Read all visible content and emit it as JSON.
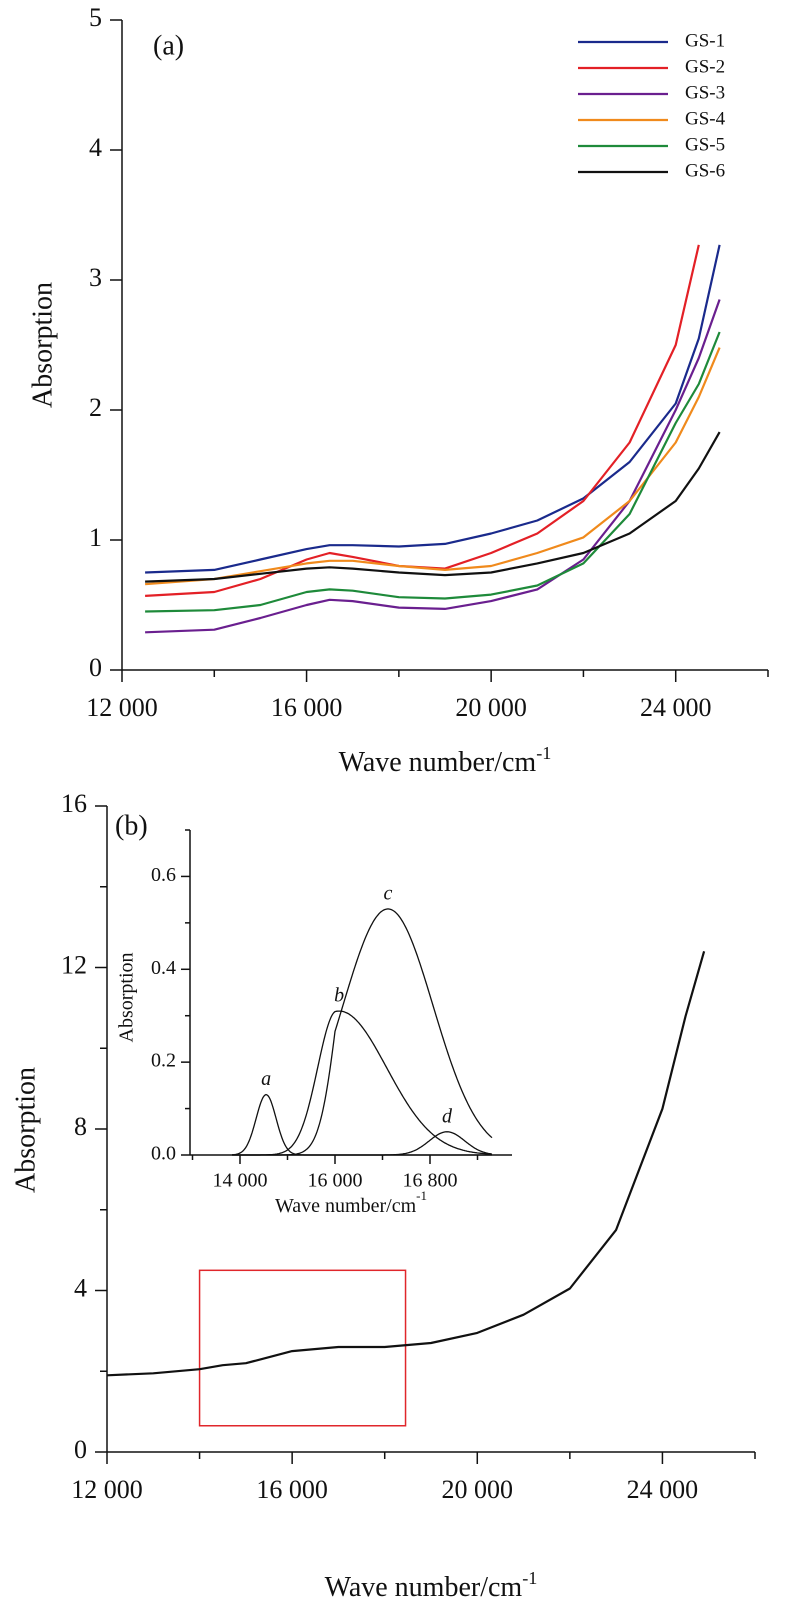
{
  "chart_data": [
    {
      "type": "line",
      "panel_label": "(a)",
      "ylabel": "Absorption",
      "xlabel": "Wave number/cm",
      "xlabel_superscript": "-1",
      "xlim": [
        12000,
        26000
      ],
      "ylim": [
        0,
        5
      ],
      "xticks": [
        {
          "value": 12000,
          "label": "12 000"
        },
        {
          "value": 16000,
          "label": "16 000"
        },
        {
          "value": 20000,
          "label": "20 000"
        },
        {
          "value": 24000,
          "label": "24 000"
        }
      ],
      "yticks": [
        0,
        1,
        2,
        3,
        4,
        5
      ],
      "legend": "upper right",
      "x": [
        12500,
        14000,
        15000,
        16000,
        16500,
        17000,
        18000,
        19000,
        20000,
        21000,
        22000,
        23000,
        24000,
        24500,
        24950
      ],
      "series": [
        {
          "name": "GS-1",
          "color": "#1a2a8c",
          "values": [
            0.75,
            0.77,
            0.85,
            0.93,
            0.96,
            0.96,
            0.95,
            0.97,
            1.05,
            1.15,
            1.32,
            1.6,
            2.05,
            2.55,
            3.27
          ]
        },
        {
          "name": "GS-2",
          "color": "#e32026",
          "values": [
            0.57,
            0.6,
            0.7,
            0.85,
            0.9,
            0.87,
            0.8,
            0.78,
            0.9,
            1.05,
            1.3,
            1.75,
            2.5,
            3.27,
            null
          ]
        },
        {
          "name": "GS-3",
          "color": "#6a1f8f",
          "values": [
            0.29,
            0.31,
            0.4,
            0.5,
            0.54,
            0.53,
            0.48,
            0.47,
            0.53,
            0.62,
            0.85,
            1.3,
            2.0,
            2.4,
            2.85
          ]
        },
        {
          "name": "GS-4",
          "color": "#f08a1c",
          "values": [
            0.66,
            0.7,
            0.76,
            0.82,
            0.84,
            0.84,
            0.8,
            0.77,
            0.8,
            0.9,
            1.02,
            1.3,
            1.75,
            2.1,
            2.48
          ]
        },
        {
          "name": "GS-5",
          "color": "#1e8a3a",
          "values": [
            0.45,
            0.46,
            0.5,
            0.6,
            0.62,
            0.61,
            0.56,
            0.55,
            0.58,
            0.65,
            0.82,
            1.2,
            1.9,
            2.2,
            2.6
          ]
        },
        {
          "name": "GS-6",
          "color": "#111111",
          "values": [
            0.68,
            0.7,
            0.74,
            0.78,
            0.79,
            0.78,
            0.75,
            0.73,
            0.75,
            0.82,
            0.9,
            1.05,
            1.3,
            1.55,
            1.83
          ]
        }
      ]
    },
    {
      "type": "line",
      "panel_label": "(b)",
      "ylabel": "Absorption",
      "xlabel": "Wave number/cm",
      "xlabel_superscript": "-1",
      "xlim": [
        12000,
        26000
      ],
      "ylim": [
        0,
        16
      ],
      "xticks": [
        {
          "value": 12000,
          "label": "12 000"
        },
        {
          "value": 16000,
          "label": "16 000"
        },
        {
          "value": 20000,
          "label": "20 000"
        },
        {
          "value": 24000,
          "label": "24 000"
        }
      ],
      "yticks": [
        0,
        4,
        8,
        12,
        16
      ],
      "x": [
        12000,
        13000,
        14000,
        14500,
        15000,
        16000,
        17000,
        18000,
        19000,
        20000,
        21000,
        22000,
        23000,
        24000,
        24500,
        24900
      ],
      "series": [
        {
          "color": "#111111",
          "values": [
            1.9,
            1.95,
            2.05,
            2.15,
            2.2,
            2.5,
            2.6,
            2.6,
            2.7,
            2.95,
            3.4,
            4.05,
            5.5,
            8.5,
            10.8,
            12.4
          ]
        }
      ],
      "box": {
        "x": [
          14000,
          18450
        ],
        "y": [
          0.65,
          4.5
        ],
        "color": "#e0262b"
      }
    },
    {
      "type": "peaks",
      "ylabel": "Absorption",
      "xlabel": "Wave number/cm",
      "xlabel_superscript": "-1",
      "ylim": [
        0,
        0.7
      ],
      "xticks": [
        {
          "value": 14000,
          "label": "14 000"
        },
        {
          "value": 16000,
          "label": "16 000"
        },
        {
          "value": 16800,
          "label": "16 800"
        }
      ],
      "yticks": [
        {
          "value": 0,
          "label": "0.0"
        },
        0.2,
        0.4,
        0.6
      ],
      "peaks": [
        {
          "label": "a",
          "center": 14550,
          "height": 0.13,
          "width": 210
        },
        {
          "label": "b",
          "center": 16035,
          "height": 0.31,
          "width": 400
        },
        {
          "label": "c",
          "center": 16446,
          "height": 0.53,
          "width": 380
        },
        {
          "label": "d",
          "center": 16943,
          "height": 0.05,
          "width": 150
        }
      ],
      "color": "#111111"
    }
  ]
}
